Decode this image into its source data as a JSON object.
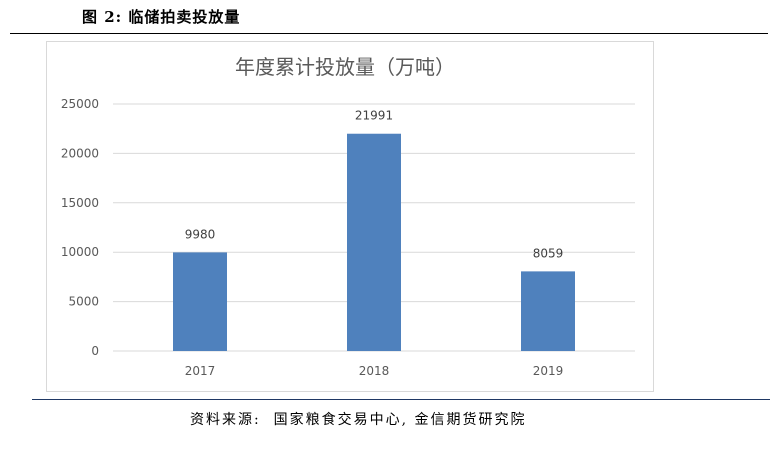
{
  "figure_title": "图 2: 临储拍卖投放量",
  "source_note": "资料来源:  国家粮食交易中心, 金信期货研究院",
  "chart_data": {
    "type": "bar",
    "title": "年度累计投放量（万吨）",
    "categories": [
      "2017",
      "2018",
      "2019"
    ],
    "values": [
      9980,
      21991,
      8059
    ],
    "data_labels": [
      "9980",
      "21991",
      "8059"
    ],
    "ylim": [
      0,
      25000
    ],
    "yticks": [
      "0",
      "5000",
      "10000",
      "15000",
      "20000",
      "25000"
    ],
    "grid": true,
    "bar_color": "#4f81bd",
    "grid_color": "#d9d9d9"
  }
}
